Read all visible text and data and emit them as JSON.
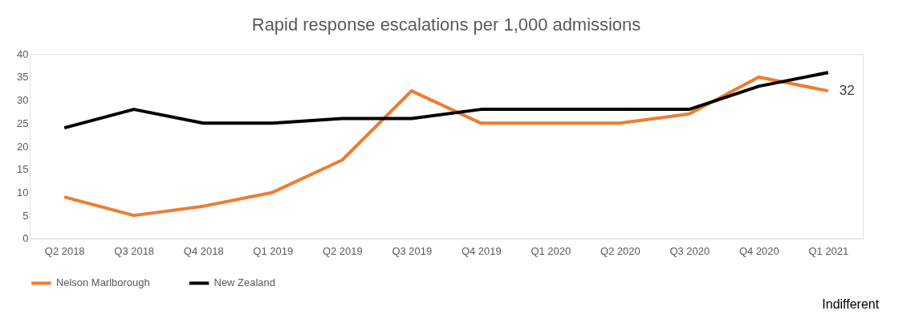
{
  "chart_data": {
    "type": "line",
    "title": "Rapid response escalations per 1,000 admissions",
    "categories": [
      "Q2 2018",
      "Q3 2018",
      "Q4 2018",
      "Q1 2019",
      "Q2 2019",
      "Q3 2019",
      "Q4 2019",
      "Q1 2020",
      "Q2 2020",
      "Q3 2020",
      "Q4 2020",
      "Q1 2021"
    ],
    "series": [
      {
        "name": "Nelson Marlborough",
        "color": "#ed7d31",
        "values": [
          9,
          5,
          7,
          10,
          17,
          32,
          25,
          25,
          25,
          27,
          35,
          32
        ],
        "value_labels": [
          null,
          null,
          null,
          null,
          null,
          null,
          null,
          null,
          null,
          null,
          null,
          "32"
        ]
      },
      {
        "name": "New Zealand",
        "color": "#000000",
        "values": [
          24,
          28,
          25,
          25,
          26,
          26,
          28,
          28,
          28,
          28,
          33,
          36
        ]
      }
    ],
    "ylim": [
      0,
      40
    ],
    "yticks": [
      0,
      5,
      10,
      15,
      20,
      25,
      30,
      35,
      40
    ],
    "grid": false,
    "legend": "bottom",
    "marker": "none",
    "line_style": "solid",
    "annotations": [
      "Indifferent"
    ]
  }
}
